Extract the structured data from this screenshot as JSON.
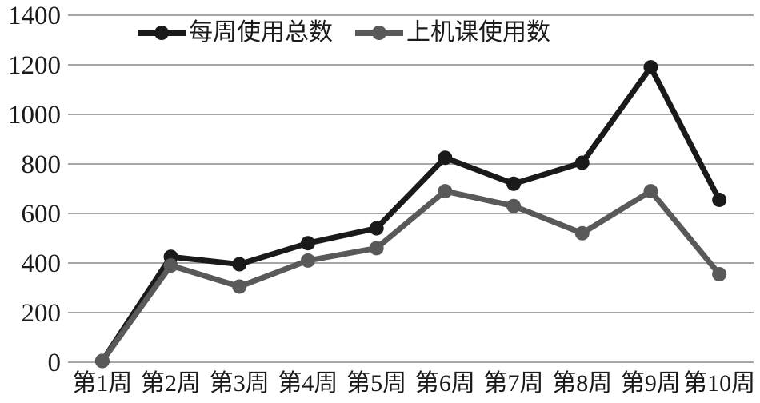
{
  "chart_data": {
    "type": "line",
    "title": "",
    "xlabel": "",
    "ylabel": "",
    "categories": [
      "第1周",
      "第2周",
      "第3周",
      "第4周",
      "第5周",
      "第6周",
      "第7周",
      "第8周",
      "第9周",
      "第10周"
    ],
    "series": [
      {
        "name": "每周使用总数",
        "color": "#1a1a1a",
        "values": [
          5,
          425,
          395,
          480,
          540,
          825,
          720,
          805,
          1190,
          655
        ]
      },
      {
        "name": "上机课使用数",
        "color": "#595959",
        "values": [
          5,
          390,
          305,
          410,
          460,
          690,
          630,
          520,
          690,
          355
        ]
      }
    ],
    "ylim": [
      0,
      1400
    ],
    "yticks": [
      0,
      200,
      400,
      600,
      800,
      1000,
      1200,
      1400
    ],
    "grid": "horizontal",
    "gridline_color": "#a6a6a6",
    "axis_label_color": "#1a1a1a",
    "background": "#ffffff",
    "legend_position": "top-inside",
    "marker": "circle"
  }
}
